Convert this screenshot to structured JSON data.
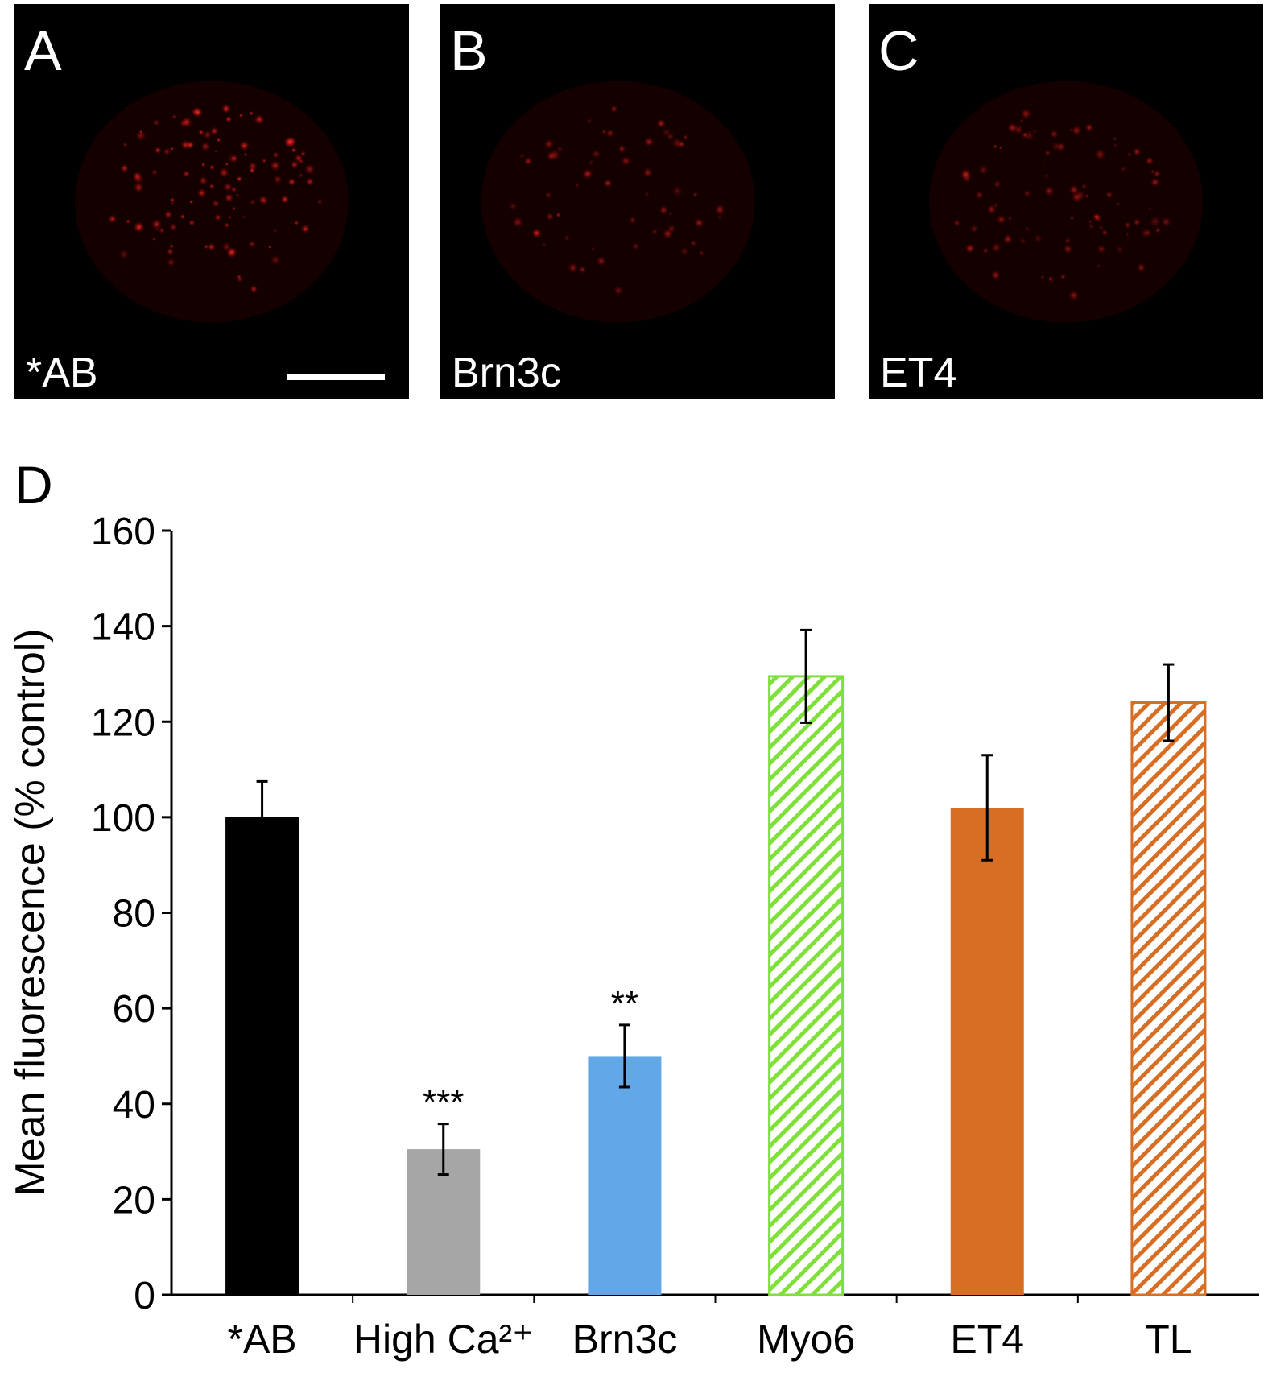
{
  "panels": [
    {
      "letter": "A",
      "label": "*AB"
    },
    {
      "letter": "B",
      "label": "Brn3c"
    },
    {
      "letter": "C",
      "label": "ET4"
    }
  ],
  "chart_data": {
    "type": "bar",
    "letter": "D",
    "ylabel": "Mean fluorescence (% control)",
    "categories": [
      "*AB",
      "High Ca²⁺",
      "Brn3c",
      "Myo6",
      "ET4",
      "TL"
    ],
    "values": [
      100,
      30.5,
      50,
      129.5,
      102,
      124
    ],
    "errors": [
      7.5,
      5.3,
      6.5,
      9.7,
      11,
      8
    ],
    "colors": [
      "#000000",
      "#a6a6a6",
      "#62a8e8",
      "#7fe03c",
      "#d86d24",
      "#d86d24"
    ],
    "hatched": [
      false,
      false,
      false,
      true,
      false,
      true
    ],
    "significance": [
      null,
      "***",
      "**",
      null,
      null,
      null
    ],
    "ylim": [
      0,
      160
    ],
    "yticks": [
      0,
      20,
      40,
      60,
      80,
      100,
      120,
      140,
      160
    ]
  }
}
